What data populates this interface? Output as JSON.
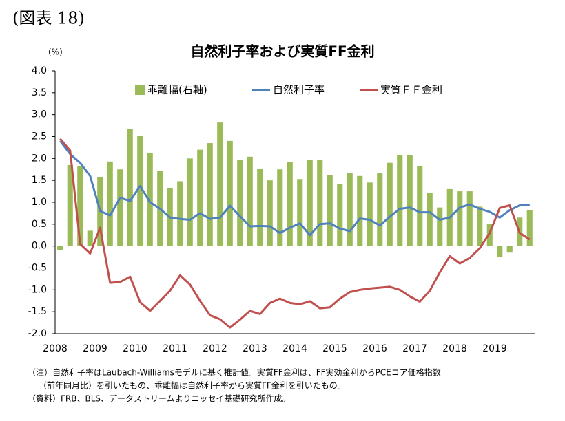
{
  "figure_label": "(図表 18)",
  "chart_data": {
    "type": "bar",
    "title": "自然利子率および実質FF金利",
    "y_unit": "(%)",
    "categories": [
      "2008",
      null,
      null,
      null,
      "2009",
      null,
      null,
      null,
      "2010",
      null,
      null,
      null,
      "2011",
      null,
      null,
      null,
      "2012",
      null,
      null,
      null,
      "2013",
      null,
      null,
      null,
      "2014",
      null,
      null,
      null,
      "2015",
      null,
      null,
      null,
      "2016",
      null,
      null,
      null,
      "2017",
      null,
      null,
      null,
      "2018",
      null,
      null,
      null,
      "2019",
      null,
      null,
      null
    ],
    "series": [
      {
        "name": "乖離幅(右軸)",
        "type": "bar",
        "color": "#9bbb59",
        "values": [
          -0.1,
          1.85,
          1.82,
          0.35,
          1.57,
          1.93,
          1.75,
          2.67,
          2.52,
          2.13,
          1.72,
          1.32,
          1.48,
          2.0,
          2.2,
          2.35,
          2.82,
          2.4,
          1.97,
          2.04,
          1.76,
          1.5,
          1.75,
          1.92,
          1.53,
          1.97,
          1.97,
          1.62,
          1.42,
          1.67,
          1.6,
          1.45,
          1.67,
          1.9,
          2.08,
          2.08,
          1.82,
          1.22,
          0.88,
          1.3,
          1.25,
          1.25,
          0.9,
          0.5,
          -0.25,
          -0.15,
          0.65,
          0.82
        ]
      },
      {
        "name": "自然利子率",
        "type": "line",
        "color": "#4f81bd",
        "values": [
          2.4,
          2.1,
          1.9,
          1.6,
          0.8,
          0.7,
          1.1,
          1.03,
          1.37,
          1.0,
          0.85,
          0.65,
          0.62,
          0.6,
          0.75,
          0.62,
          0.65,
          0.92,
          0.68,
          0.45,
          0.46,
          0.45,
          0.3,
          0.42,
          0.52,
          0.25,
          0.5,
          0.52,
          0.4,
          0.34,
          0.63,
          0.6,
          0.47,
          0.67,
          0.85,
          0.88,
          0.77,
          0.77,
          0.6,
          0.65,
          0.88,
          0.95,
          0.85,
          0.78,
          0.65,
          0.82,
          0.93,
          0.93
        ]
      },
      {
        "name": "実質ＦＦ金利",
        "type": "line",
        "color": "#c0504d",
        "values": [
          2.45,
          2.18,
          0.05,
          -0.17,
          0.42,
          -0.84,
          -0.82,
          -0.7,
          -1.28,
          -1.48,
          -1.25,
          -1.02,
          -0.67,
          -0.88,
          -1.25,
          -1.58,
          -1.67,
          -1.86,
          -1.68,
          -1.48,
          -1.55,
          -1.3,
          -1.2,
          -1.3,
          -1.33,
          -1.26,
          -1.42,
          -1.4,
          -1.2,
          -1.05,
          -1.0,
          -0.97,
          -0.95,
          -0.93,
          -1.0,
          -1.15,
          -1.27,
          -1.02,
          -0.6,
          -0.23,
          -0.4,
          -0.27,
          -0.05,
          0.3,
          0.87,
          0.93,
          0.3,
          0.15
        ]
      }
    ],
    "ylim": [
      -2.0,
      4.0
    ],
    "yticks": [
      {
        "value": -2.0,
        "label": "-2.0"
      },
      {
        "value": -1.5,
        "label": "-1.5"
      },
      {
        "value": -1.0,
        "label": "-1.0"
      },
      {
        "value": -0.5,
        "label": "-0.5"
      },
      {
        "value": 0.0,
        "label": "0.0"
      },
      {
        "value": 0.5,
        "label": "0.5"
      },
      {
        "value": 1.0,
        "label": "1.0"
      },
      {
        "value": 1.5,
        "label": "1.5"
      },
      {
        "value": 2.0,
        "label": "2.0"
      },
      {
        "value": 2.5,
        "label": "2.5"
      },
      {
        "value": 3.0,
        "label": "3.0"
      },
      {
        "value": 3.5,
        "label": "3.5"
      },
      {
        "value": 4.0,
        "label": "4.0"
      }
    ],
    "grid": false,
    "legend": "top"
  },
  "notes": [
    "（注）自然利子率はLaubach-Williamsモデルに基く推計値。実質FF金利は、FF実効金利からPCEコア価格指数",
    "（前年同月比）を引いたもの、乖離幅は自然利子率から実質FF金利を引いたもの。",
    "（資料）FRB、BLS、データストリームよりニッセイ基礎研究所作成。"
  ]
}
